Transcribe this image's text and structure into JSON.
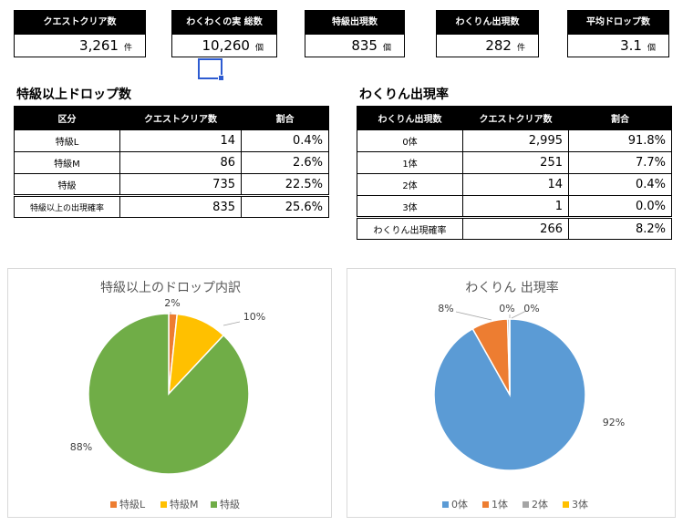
{
  "kpis": [
    {
      "label": "クエストクリア数",
      "value": "3,261",
      "unit": "件"
    },
    {
      "label": "わくわくの実 総数",
      "value": "10,260",
      "unit": "個"
    },
    {
      "label": "特級出現数",
      "value": "835",
      "unit": "個"
    },
    {
      "label": "わくりん出現数",
      "value": "282",
      "unit": "件"
    },
    {
      "label": "平均ドロップ数",
      "value": "3.1",
      "unit": "個"
    }
  ],
  "drop_table": {
    "title": "特級以上ドロップ数",
    "headers": [
      "区分",
      "クエストクリア数",
      "割合"
    ],
    "rows": [
      {
        "cat": "特級L",
        "count": "14",
        "ratio": "0.4%"
      },
      {
        "cat": "特級M",
        "count": "86",
        "ratio": "2.6%"
      },
      {
        "cat": "特級",
        "count": "735",
        "ratio": "22.5%"
      }
    ],
    "total": {
      "cat": "特級以上の出現確率",
      "count": "835",
      "ratio": "25.6%"
    }
  },
  "wakurin_table": {
    "title": "わくりん出現率",
    "headers": [
      "わくりん出現数",
      "クエストクリア数",
      "割合"
    ],
    "rows": [
      {
        "cat": "0体",
        "count": "2,995",
        "ratio": "91.8%"
      },
      {
        "cat": "1体",
        "count": "251",
        "ratio": "7.7%"
      },
      {
        "cat": "2体",
        "count": "14",
        "ratio": "0.4%"
      },
      {
        "cat": "3体",
        "count": "1",
        "ratio": "0.0%"
      }
    ],
    "total": {
      "cat": "わくりん出現確率",
      "count": "266",
      "ratio": "8.2%"
    }
  },
  "chart_data": [
    {
      "type": "pie",
      "title": "特級以上のドロップ内訳",
      "categories": [
        "特級L",
        "特級M",
        "特級"
      ],
      "values": [
        14,
        86,
        735
      ],
      "data_labels": [
        "2%",
        "10%",
        "88%"
      ],
      "colors": [
        "#ed7d31",
        "#ffc000",
        "#70ad47"
      ],
      "legend": "bottom"
    },
    {
      "type": "pie",
      "title": "わくりん 出現率",
      "categories": [
        "0体",
        "1体",
        "2体",
        "3体"
      ],
      "values": [
        2995,
        251,
        14,
        1
      ],
      "data_labels": [
        "92%",
        "8%",
        "0%",
        "0%"
      ],
      "colors": [
        "#5b9bd5",
        "#ed7d31",
        "#a5a5a5",
        "#ffc000"
      ],
      "legend": "bottom"
    }
  ]
}
